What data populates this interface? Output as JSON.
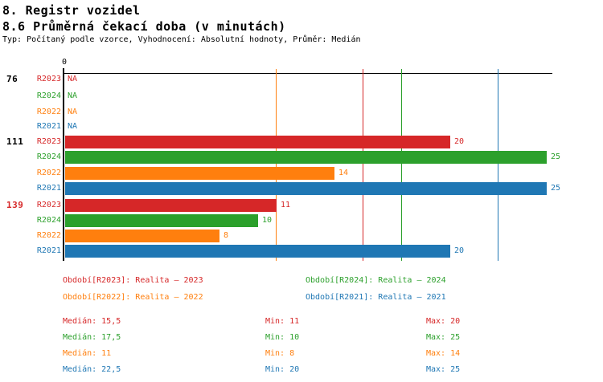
{
  "header": {
    "title": "8. Registr vozidel",
    "subtitle": "8.6 Průměrná čekací doba (v minutách)",
    "meta": "Typ: Počítaný podle vzorce, Vyhodnocení: Absolutní hodnoty, Průměr: Medián"
  },
  "colors": {
    "R2023": "#d62728",
    "R2024": "#2ca02c",
    "R2022": "#ff7f0e",
    "R2021": "#1f77b4",
    "axis": "#000000"
  },
  "chart_data": {
    "type": "bar",
    "orientation": "horizontal",
    "title": "8.6 Průměrná čekací doba (v minutách)",
    "x_axis": {
      "zero_label": "0",
      "min": 0,
      "max_shown": 25
    },
    "grid": false,
    "groups": [
      {
        "label": "76",
        "label_color": "#000000",
        "rows": [
          {
            "series": "R2023",
            "value": null,
            "display": "NA"
          },
          {
            "series": "R2024",
            "value": null,
            "display": "NA"
          },
          {
            "series": "R2022",
            "value": null,
            "display": "NA"
          },
          {
            "series": "R2021",
            "value": null,
            "display": "NA"
          }
        ]
      },
      {
        "label": "111",
        "label_color": "#000000",
        "rows": [
          {
            "series": "R2023",
            "value": 20
          },
          {
            "series": "R2024",
            "value": 25
          },
          {
            "series": "R2022",
            "value": 14
          },
          {
            "series": "R2021",
            "value": 25
          }
        ]
      },
      {
        "label": "139",
        "label_color": "#d62728",
        "rows": [
          {
            "series": "R2023",
            "value": 11
          },
          {
            "series": "R2024",
            "value": 10
          },
          {
            "series": "R2022",
            "value": 8
          },
          {
            "series": "R2021",
            "value": 20
          }
        ]
      }
    ],
    "median_lines": [
      {
        "series": "R2022",
        "value": 11
      },
      {
        "series": "R2023",
        "value": 15.5
      },
      {
        "series": "R2024",
        "value": 17.5
      },
      {
        "series": "R2021",
        "value": 22.5
      }
    ]
  },
  "legend": [
    {
      "series": "R2023",
      "label": "Období[R2023]: Realita – 2023"
    },
    {
      "series": "R2024",
      "label": "Období[R2024]: Realita – 2024"
    },
    {
      "series": "R2022",
      "label": "Období[R2022]: Realita – 2022"
    },
    {
      "series": "R2021",
      "label": "Období[R2021]: Realita – 2021"
    }
  ],
  "stats": [
    {
      "series": "R2023",
      "cells": [
        "Medián: 15,5",
        "Min: 11",
        "Max: 20"
      ]
    },
    {
      "series": "R2024",
      "cells": [
        "Medián: 17,5",
        "Min: 10",
        "Max: 25"
      ]
    },
    {
      "series": "R2022",
      "cells": [
        "Medián: 11",
        "Min: 8",
        "Max: 14"
      ]
    },
    {
      "series": "R2021",
      "cells": [
        "Medián: 22,5",
        "Min: 20",
        "Max: 25"
      ]
    }
  ]
}
